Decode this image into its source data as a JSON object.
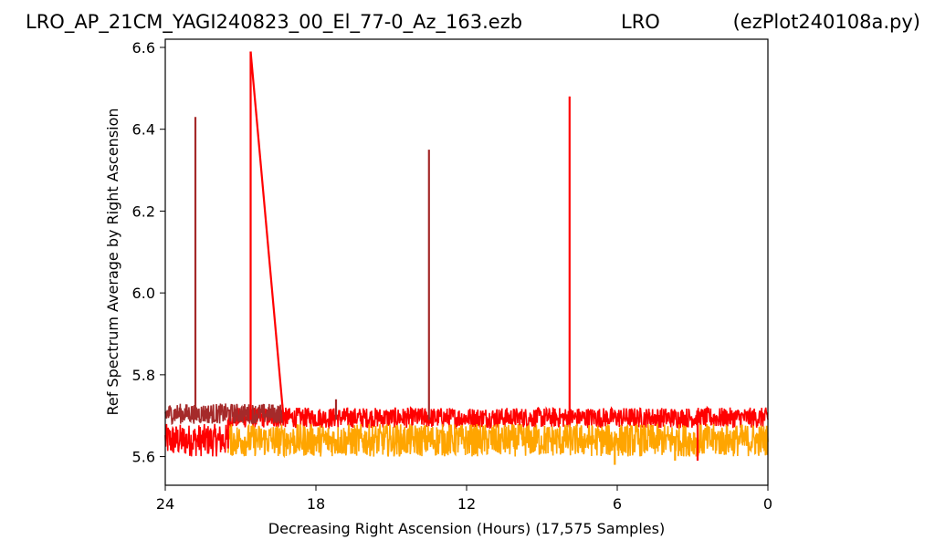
{
  "header": {
    "filename": "LRO_AP_21CM_YAGI240823_00_El_77-0_Az_163.ezb",
    "site": "LRO",
    "script": "(ezPlot240108a.py)"
  },
  "chart_data": {
    "type": "line",
    "xlabel": "Decreasing Right Ascension (Hours) (17,575 Samples)",
    "ylabel": "Ref Spectrum Average by Right Ascension",
    "xlim": [
      24,
      0
    ],
    "ylim": [
      5.53,
      6.62
    ],
    "xticks": [
      24,
      18,
      12,
      6,
      0
    ],
    "yticks": [
      5.6,
      5.8,
      6.0,
      6.2,
      6.4,
      6.6
    ],
    "ytick_labels": [
      "5.6",
      "5.8",
      "6.0",
      "6.2",
      "6.4",
      "6.6"
    ],
    "grid": false,
    "colors": {
      "red": "#ff0000",
      "brown": "#a52a2a",
      "orange": "#ffa500"
    },
    "series": [
      {
        "color": "red",
        "bands": [
          {
            "x0": 24.0,
            "x1": 21.5,
            "lo": 5.6,
            "hi": 5.68
          },
          {
            "x0": 21.5,
            "x1": 0.0,
            "lo": 5.67,
            "hi": 5.72
          }
        ],
        "spikes": [
          {
            "x": 21.5,
            "y": 5.62
          },
          {
            "x": 20.6,
            "y": 6.59
          },
          {
            "x": 19.3,
            "y": 5.7
          },
          {
            "x": 7.9,
            "y": 6.48
          },
          {
            "x": 2.8,
            "y": 5.59
          }
        ]
      },
      {
        "color": "brown",
        "bands": [
          {
            "x0": 24.0,
            "x1": 19.3,
            "lo": 5.68,
            "hi": 5.73
          }
        ],
        "spikes": [
          {
            "x": 22.8,
            "y": 6.43
          },
          {
            "x": 13.5,
            "y": 6.35
          },
          {
            "x": 17.2,
            "y": 5.74
          }
        ]
      },
      {
        "color": "orange",
        "bands": [
          {
            "x0": 21.5,
            "x1": 0.0,
            "lo": 5.6,
            "hi": 5.68
          }
        ],
        "spikes": [
          {
            "x": 6.1,
            "y": 5.58
          },
          {
            "x": 3.7,
            "y": 5.59
          }
        ]
      }
    ]
  }
}
